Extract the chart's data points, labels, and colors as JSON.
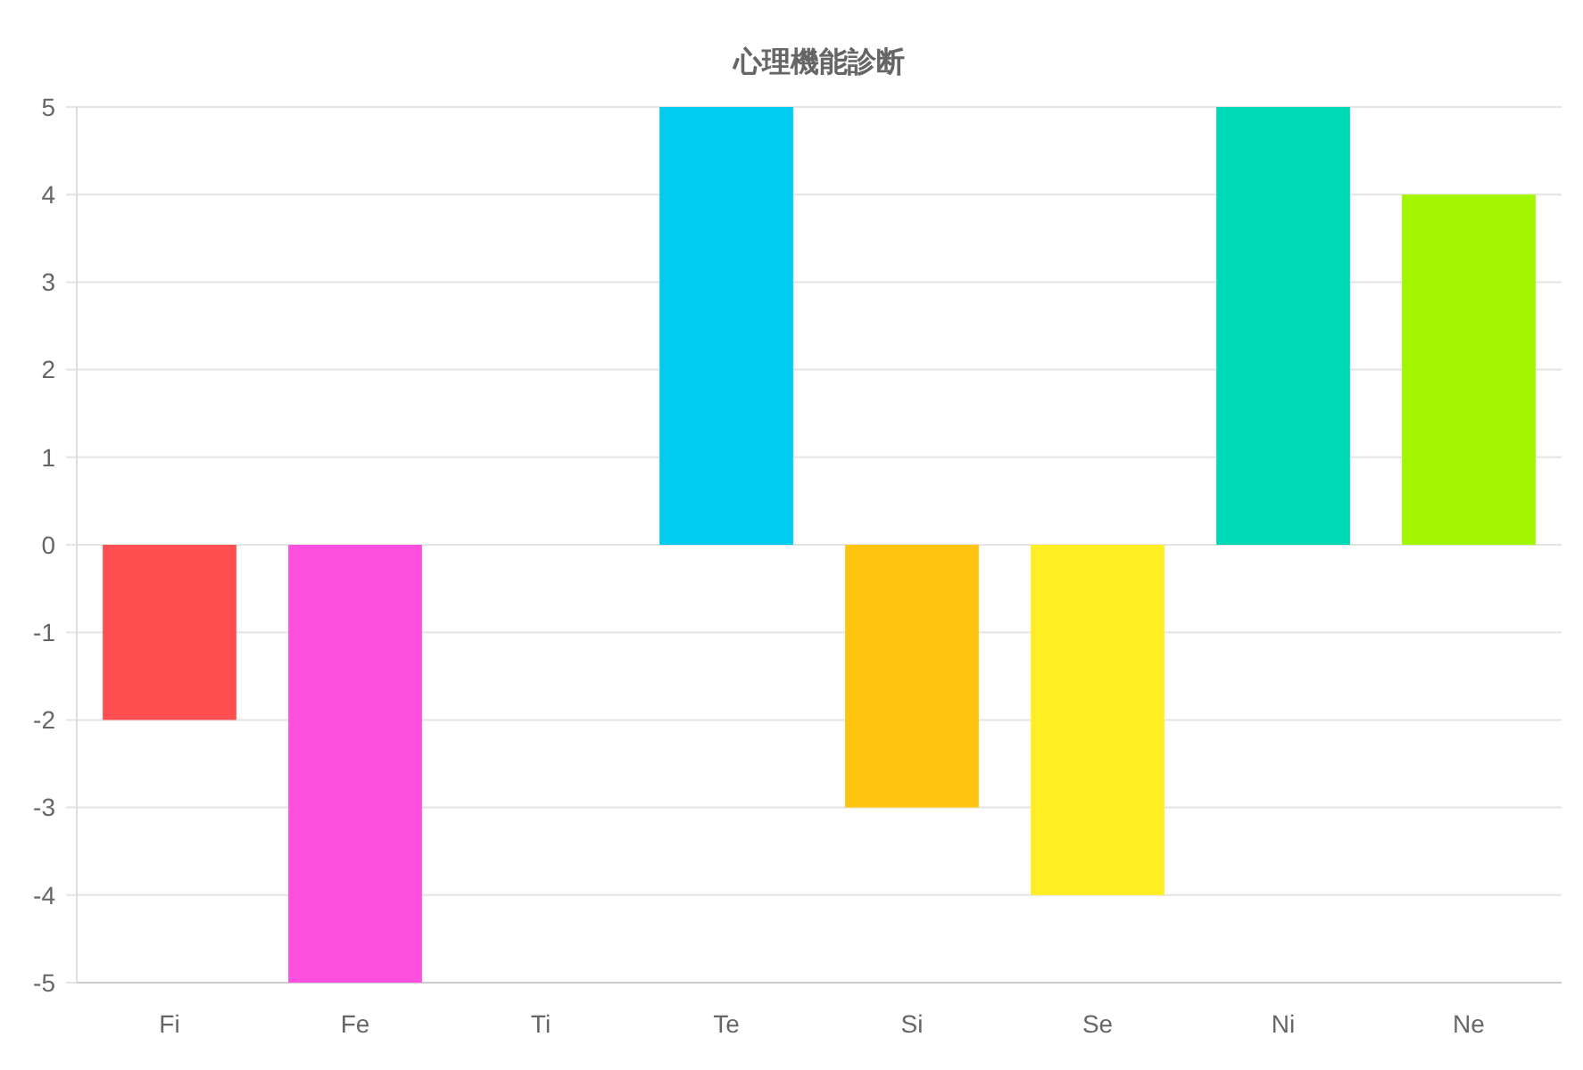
{
  "chart_data": {
    "type": "bar",
    "title": "心理機能診断",
    "categories": [
      "Fi",
      "Fe",
      "Ti",
      "Te",
      "Si",
      "Se",
      "Ni",
      "Ne"
    ],
    "values": [
      -2,
      -5,
      0,
      5,
      -3,
      -4,
      5,
      4
    ],
    "colors": [
      "#ff4f50",
      "#ff4fdf",
      "#9966ff",
      "#00ccf0",
      "#ffc40f",
      "#ffee22",
      "#00d9b5",
      "#a3f500"
    ],
    "ylim": [
      -5,
      5
    ],
    "yticks": [
      -5,
      -4,
      -3,
      -2,
      -1,
      0,
      1,
      2,
      3,
      4,
      5
    ],
    "grid": "y"
  }
}
